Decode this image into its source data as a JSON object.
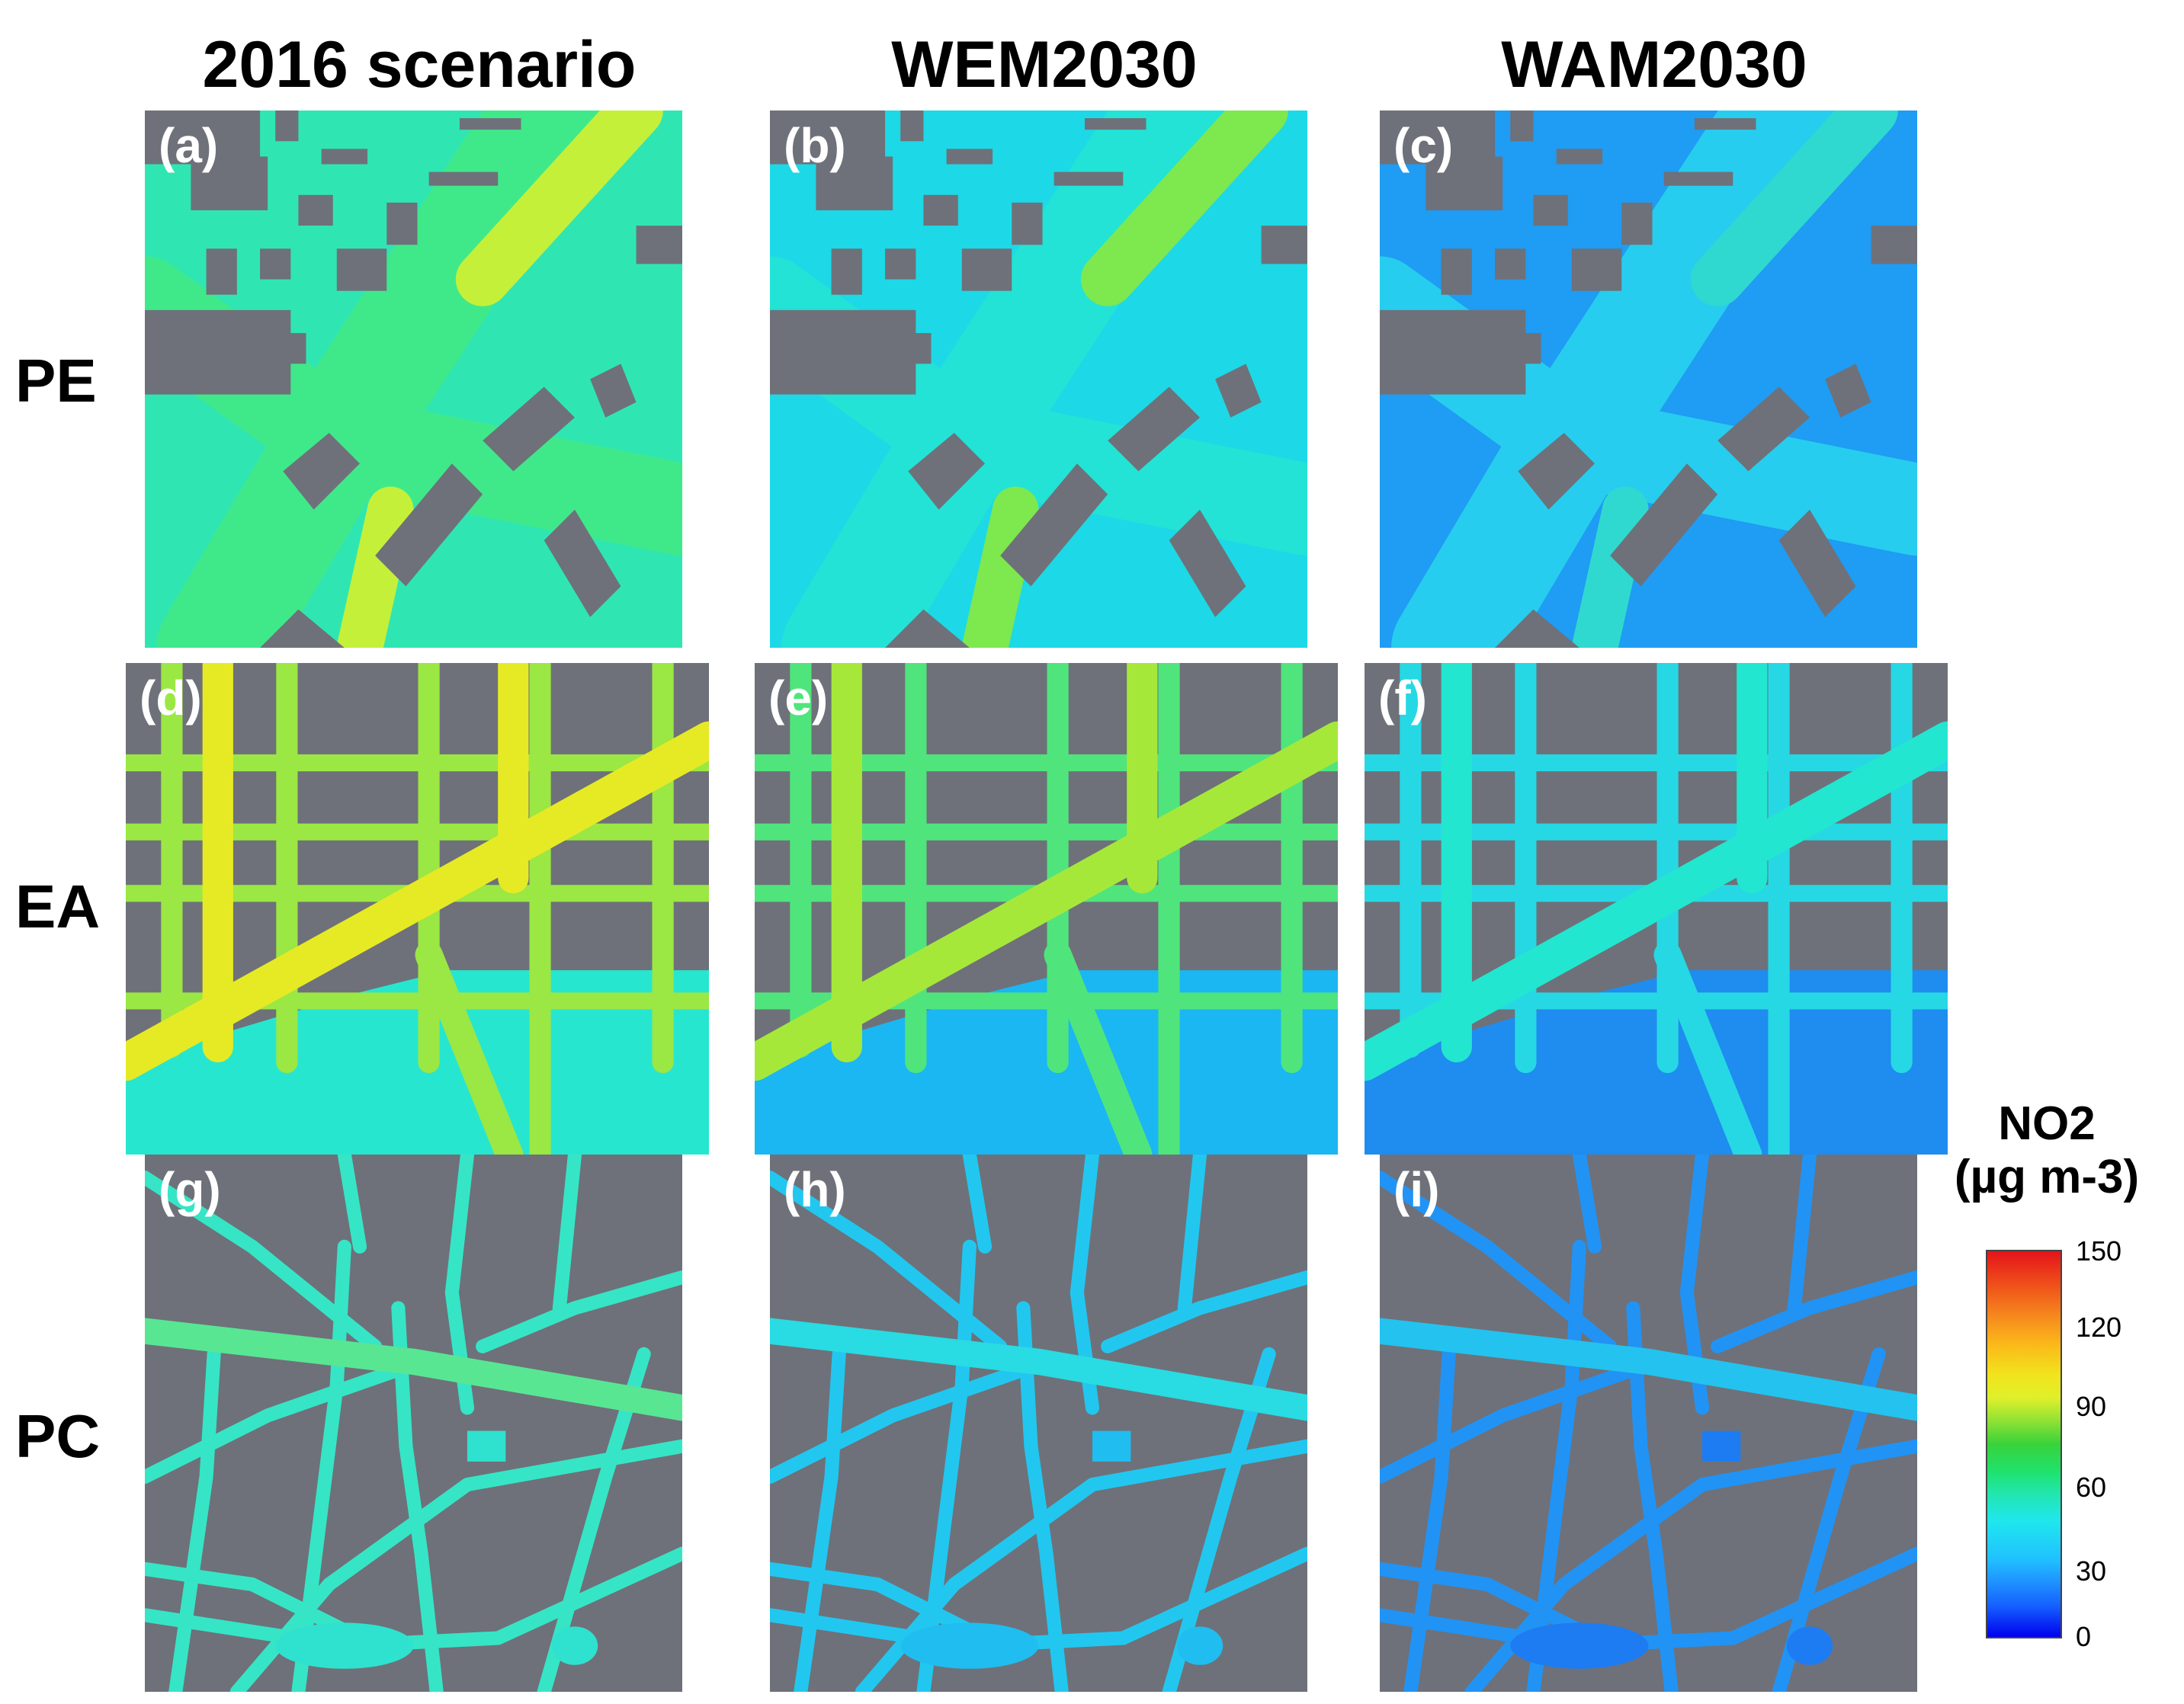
{
  "columns": [
    "2016 scenario",
    "WEM2030",
    "WAM2030"
  ],
  "rows": [
    "PE",
    "EA",
    "PC"
  ],
  "panels": [
    {
      "label": "(a)",
      "district": "PE",
      "scenario": "2016 scenario",
      "road_color": "#3fe98a",
      "hot_color": "#c5f03a",
      "background_color": "#2fe6b2"
    },
    {
      "label": "(b)",
      "district": "PE",
      "scenario": "WEM2030",
      "road_color": "#22e3d6",
      "hot_color": "#7ee84f",
      "background_color": "#1dd8e6"
    },
    {
      "label": "(c)",
      "district": "PE",
      "scenario": "WAM2030",
      "road_color": "#27cdee",
      "hot_color": "#2fd9cf",
      "background_color": "#1f9cf3"
    },
    {
      "label": "(d)",
      "district": "EA",
      "scenario": "2016 scenario",
      "road_color": "#9be744",
      "hot_color": "#e6ea24",
      "background_color": "#27e6cf"
    },
    {
      "label": "(e)",
      "district": "EA",
      "scenario": "WEM2030",
      "road_color": "#4fe57c",
      "hot_color": "#a6e83a",
      "background_color": "#1ab7f2"
    },
    {
      "label": "(f)",
      "district": "EA",
      "scenario": "WAM2030",
      "road_color": "#26d8e4",
      "hot_color": "#22e6d0",
      "background_color": "#1f8cf0"
    },
    {
      "label": "(g)",
      "district": "PC",
      "scenario": "2016 scenario",
      "road_color": "#36e5c6",
      "hot_color": "#58e693",
      "background_color": "#2ee2cf"
    },
    {
      "label": "(h)",
      "district": "PC",
      "scenario": "WEM2030",
      "road_color": "#22c7f0",
      "hot_color": "#29dbe2",
      "background_color": "#20bdf0"
    },
    {
      "label": "(i)",
      "district": "PC",
      "scenario": "WAM2030",
      "road_color": "#2193f5",
      "hot_color": "#24c2ef",
      "background_color": "#1e7cf2"
    }
  ],
  "colorbar": {
    "title_line1": "NO2",
    "title_line2": "(µg m-3)",
    "ticks": [
      "150",
      "120",
      "90",
      "60",
      "30",
      "0"
    ],
    "min": 0,
    "max": 150,
    "colors": [
      "#0000ee",
      "#1e90ff",
      "#1fe7ee",
      "#1fe26c",
      "#dff02a",
      "#f5831d",
      "#e4141a"
    ]
  },
  "building_color": "#6e7179"
}
